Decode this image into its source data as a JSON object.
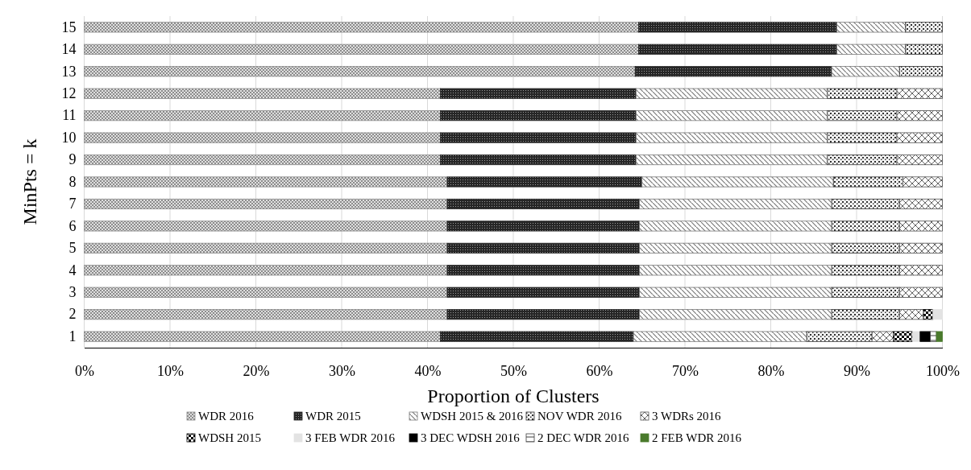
{
  "chart_data": {
    "type": "bar",
    "orientation": "horizontal",
    "stacked": true,
    "xlabel": "Proportion of Clusters",
    "ylabel": "MinPts = k",
    "categories": [
      "15",
      "14",
      "13",
      "12",
      "11",
      "10",
      "9",
      "8",
      "7",
      "6",
      "5",
      "4",
      "3",
      "2",
      "1"
    ],
    "xlim": [
      0,
      100
    ],
    "xticks": [
      {
        "value": 0,
        "label": "0%"
      },
      {
        "value": 10,
        "label": "10%"
      },
      {
        "value": 20,
        "label": "20%"
      },
      {
        "value": 30,
        "label": "30%"
      },
      {
        "value": 40,
        "label": "40%"
      },
      {
        "value": 50,
        "label": "50%"
      },
      {
        "value": 60,
        "label": "60%"
      },
      {
        "value": 70,
        "label": "70%"
      },
      {
        "value": 80,
        "label": "80%"
      },
      {
        "value": 90,
        "label": "90%"
      },
      {
        "value": 100,
        "label": "100%"
      }
    ],
    "grid": "x",
    "legend": "bottom",
    "series": [
      {
        "name": "WDR 2016",
        "color": "#8c8c8c",
        "values": [
          64.6,
          64.6,
          64.2,
          41.5,
          41.5,
          41.5,
          41.5,
          42.3,
          42.3,
          42.3,
          42.3,
          42.3,
          42.3,
          42.3,
          41.5
        ]
      },
      {
        "name": "WDR 2015",
        "color": "#262626",
        "values": [
          23.1,
          23.1,
          22.9,
          22.8,
          22.8,
          22.8,
          22.8,
          22.7,
          22.4,
          22.4,
          22.4,
          22.4,
          22.4,
          22.4,
          22.5
        ]
      },
      {
        "name": "WDSH 2015 & 2016",
        "color": "#7a7a7a",
        "values": [
          8.0,
          8.0,
          7.9,
          22.3,
          22.3,
          22.3,
          22.3,
          22.3,
          22.4,
          22.4,
          22.4,
          22.4,
          22.4,
          22.4,
          20.2
        ]
      },
      {
        "name": "NOV WDR 2016",
        "color": "#303030",
        "values": [
          4.3,
          4.3,
          5.0,
          8.1,
          8.1,
          8.1,
          8.1,
          8.1,
          7.9,
          7.9,
          7.9,
          7.9,
          7.9,
          7.9,
          7.6
        ]
      },
      {
        "name": "3 WDRs 2016",
        "color": "#505050",
        "values": [
          null,
          null,
          null,
          5.3,
          5.3,
          5.3,
          5.3,
          4.6,
          5.0,
          5.0,
          5.0,
          5.0,
          5.0,
          2.8,
          2.5
        ]
      },
      {
        "name": "WDSH 2015",
        "color": "#000000",
        "values": [
          null,
          null,
          null,
          null,
          null,
          null,
          null,
          null,
          null,
          null,
          null,
          null,
          null,
          1.1,
          2.2
        ]
      },
      {
        "name": "3 FEB WDR 2016",
        "color": "#e3e3e3",
        "values": [
          null,
          null,
          null,
          null,
          null,
          null,
          null,
          null,
          null,
          null,
          null,
          null,
          null,
          1.1,
          0.9
        ]
      },
      {
        "name": "3 DEC WDSH 2016",
        "color": "#000000",
        "values": [
          null,
          null,
          null,
          null,
          null,
          null,
          null,
          null,
          null,
          null,
          null,
          null,
          null,
          null,
          1.2
        ]
      },
      {
        "name": "2 DEC WDR 2016",
        "color": "#404040",
        "values": [
          null,
          null,
          null,
          null,
          null,
          null,
          null,
          null,
          null,
          null,
          null,
          null,
          null,
          null,
          0.7
        ]
      },
      {
        "name": "2 FEB WDR 2016",
        "color": "#4a7a2c",
        "values": [
          null,
          null,
          null,
          null,
          null,
          null,
          null,
          null,
          null,
          null,
          null,
          null,
          null,
          null,
          0.7
        ]
      }
    ]
  }
}
